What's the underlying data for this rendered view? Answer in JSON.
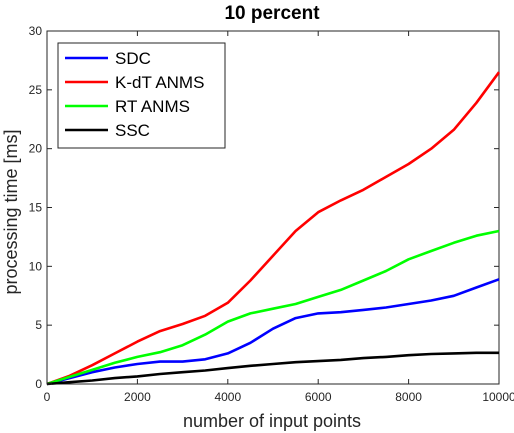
{
  "chart_data": {
    "type": "line",
    "title": "10 percent",
    "xlabel": "number of input points",
    "ylabel": "processing time [ms]",
    "xlim": [
      0,
      10000
    ],
    "ylim": [
      0,
      30
    ],
    "xticks": [
      "0",
      "2000",
      "4000",
      "6000",
      "8000",
      "10000"
    ],
    "yticks": [
      "0",
      "5",
      "10",
      "15",
      "20",
      "25",
      "30"
    ],
    "grid": false,
    "legend_position": "top-left",
    "series": [
      {
        "name": "SDC",
        "color": "#0000ff",
        "x": [
          0,
          500,
          1000,
          1500,
          2000,
          2500,
          3000,
          3500,
          4000,
          4500,
          5000,
          5500,
          6000,
          6500,
          7000,
          7500,
          8000,
          8500,
          9000,
          9500,
          10000
        ],
        "y": [
          0,
          0.5,
          1.0,
          1.4,
          1.7,
          1.9,
          1.9,
          2.1,
          2.6,
          3.5,
          4.7,
          5.6,
          6.0,
          6.1,
          6.3,
          6.5,
          6.8,
          7.1,
          7.5,
          8.2,
          8.9
        ]
      },
      {
        "name": "K-dT ANMS",
        "color": "#ff0000",
        "x": [
          0,
          500,
          1000,
          1500,
          2000,
          2500,
          3000,
          3500,
          4000,
          4500,
          5000,
          5500,
          6000,
          6500,
          7000,
          7500,
          8000,
          8500,
          9000,
          9500,
          10000
        ],
        "y": [
          0,
          0.7,
          1.6,
          2.6,
          3.6,
          4.5,
          5.1,
          5.8,
          6.9,
          8.8,
          10.9,
          13.0,
          14.6,
          15.6,
          16.5,
          17.6,
          18.7,
          20.0,
          21.6,
          23.9,
          26.5
        ]
      },
      {
        "name": "RT ANMS",
        "color": "#00ff00",
        "x": [
          0,
          500,
          1000,
          1500,
          2000,
          2500,
          3000,
          3500,
          4000,
          4500,
          5000,
          5500,
          6000,
          6500,
          7000,
          7500,
          8000,
          8500,
          9000,
          9500,
          10000
        ],
        "y": [
          0,
          0.6,
          1.2,
          1.8,
          2.3,
          2.7,
          3.3,
          4.2,
          5.3,
          6.0,
          6.4,
          6.8,
          7.4,
          8.0,
          8.8,
          9.6,
          10.6,
          11.3,
          12.0,
          12.6,
          13.0
        ]
      },
      {
        "name": "SSC",
        "color": "#000000",
        "x": [
          0,
          500,
          1000,
          1500,
          2000,
          2500,
          3000,
          3500,
          4000,
          4500,
          5000,
          5500,
          6000,
          6500,
          7000,
          7500,
          8000,
          8500,
          9000,
          9500,
          10000
        ],
        "y": [
          0,
          0.15,
          0.3,
          0.5,
          0.65,
          0.85,
          1.0,
          1.15,
          1.35,
          1.55,
          1.7,
          1.85,
          1.95,
          2.05,
          2.2,
          2.3,
          2.45,
          2.55,
          2.6,
          2.65,
          2.65
        ]
      }
    ]
  }
}
